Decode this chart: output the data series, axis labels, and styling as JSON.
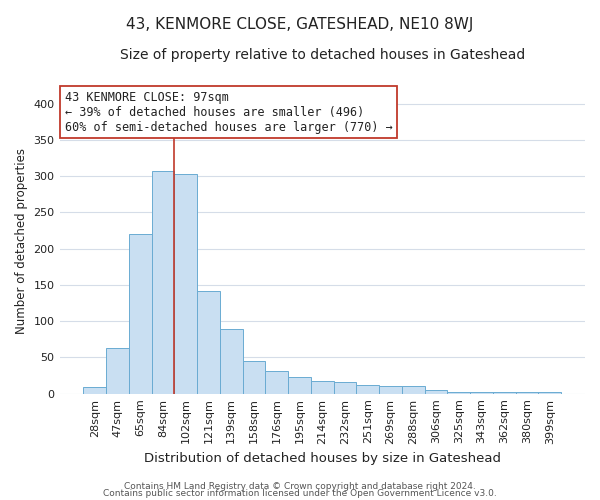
{
  "title": "43, KENMORE CLOSE, GATESHEAD, NE10 8WJ",
  "subtitle": "Size of property relative to detached houses in Gateshead",
  "xlabel": "Distribution of detached houses by size in Gateshead",
  "ylabel": "Number of detached properties",
  "bar_labels": [
    "28sqm",
    "47sqm",
    "65sqm",
    "84sqm",
    "102sqm",
    "121sqm",
    "139sqm",
    "158sqm",
    "176sqm",
    "195sqm",
    "214sqm",
    "232sqm",
    "251sqm",
    "269sqm",
    "288sqm",
    "306sqm",
    "325sqm",
    "343sqm",
    "362sqm",
    "380sqm",
    "399sqm"
  ],
  "bar_values": [
    9,
    63,
    220,
    307,
    303,
    141,
    89,
    45,
    31,
    23,
    17,
    16,
    12,
    11,
    10,
    5,
    3,
    3,
    3,
    3,
    3
  ],
  "bar_color": "#c9dff2",
  "bar_edge_color": "#6aabd2",
  "vline_x_idx": 4,
  "vline_color": "#c0392b",
  "annotation_line1": "43 KENMORE CLOSE: 97sqm",
  "annotation_line2": "← 39% of detached houses are smaller (496)",
  "annotation_line3": "60% of semi-detached houses are larger (770) →",
  "annotation_box_color": "#ffffff",
  "annotation_box_edge": "#c0392b",
  "ylim": [
    0,
    420
  ],
  "yticks": [
    0,
    50,
    100,
    150,
    200,
    250,
    300,
    350,
    400
  ],
  "footer1": "Contains HM Land Registry data © Crown copyright and database right 2024.",
  "footer2": "Contains public sector information licensed under the Open Government Licence v3.0.",
  "bg_color": "#ffffff",
  "grid_color": "#d5dde8",
  "title_fontsize": 11,
  "subtitle_fontsize": 10,
  "xlabel_fontsize": 9.5,
  "ylabel_fontsize": 8.5,
  "tick_fontsize": 8,
  "annotation_fontsize": 8.5,
  "footer_fontsize": 6.5
}
